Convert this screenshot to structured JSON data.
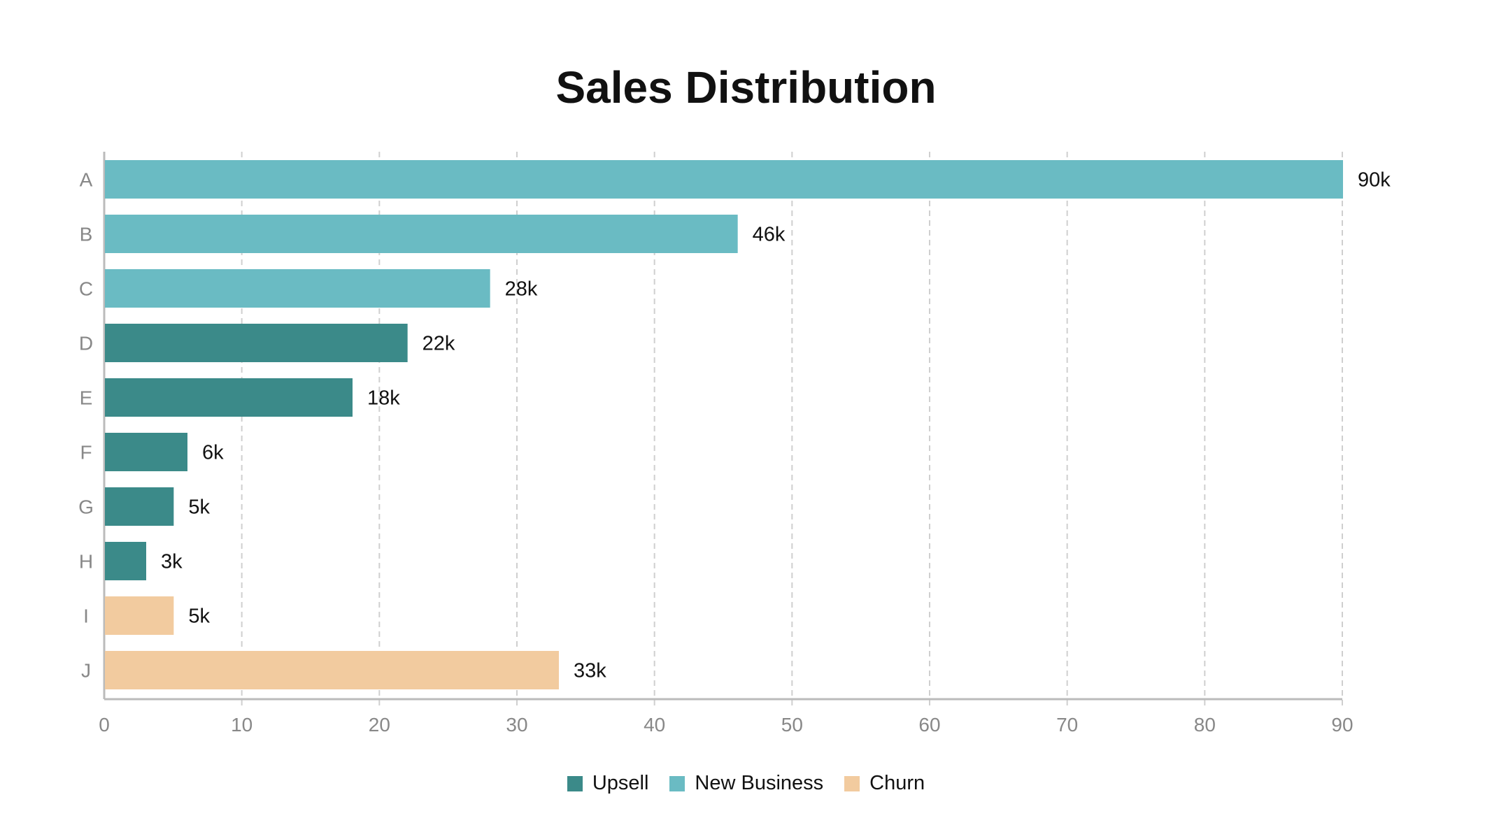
{
  "chart_data": {
    "type": "bar",
    "orientation": "horizontal",
    "title": "Sales Distribution",
    "xlabel": "",
    "ylabel": "",
    "xlim": [
      0,
      90
    ],
    "x_ticks": [
      "0",
      "10",
      "20",
      "30",
      "40",
      "50",
      "60",
      "70",
      "80",
      "90"
    ],
    "grid": "vertical dashed",
    "legend_position": "bottom",
    "categories": [
      "A",
      "B",
      "C",
      "D",
      "E",
      "F",
      "G",
      "H",
      "I",
      "J"
    ],
    "values": [
      90,
      46,
      28,
      22,
      18,
      6,
      5,
      3,
      5,
      33
    ],
    "data_labels": [
      "90k",
      "46k",
      "28k",
      "22k",
      "18k",
      "6k",
      "5k",
      "3k",
      "5k",
      "33k"
    ],
    "series_of_bar": [
      "New Business",
      "New Business",
      "New Business",
      "Upsell",
      "Upsell",
      "Upsell",
      "Upsell",
      "Upsell",
      "Churn",
      "Churn"
    ],
    "legend": [
      {
        "name": "Upsell",
        "color": "#3b8a89"
      },
      {
        "name": "New Business",
        "color": "#6abbc3"
      },
      {
        "name": "Churn",
        "color": "#f2cb9f"
      }
    ]
  }
}
